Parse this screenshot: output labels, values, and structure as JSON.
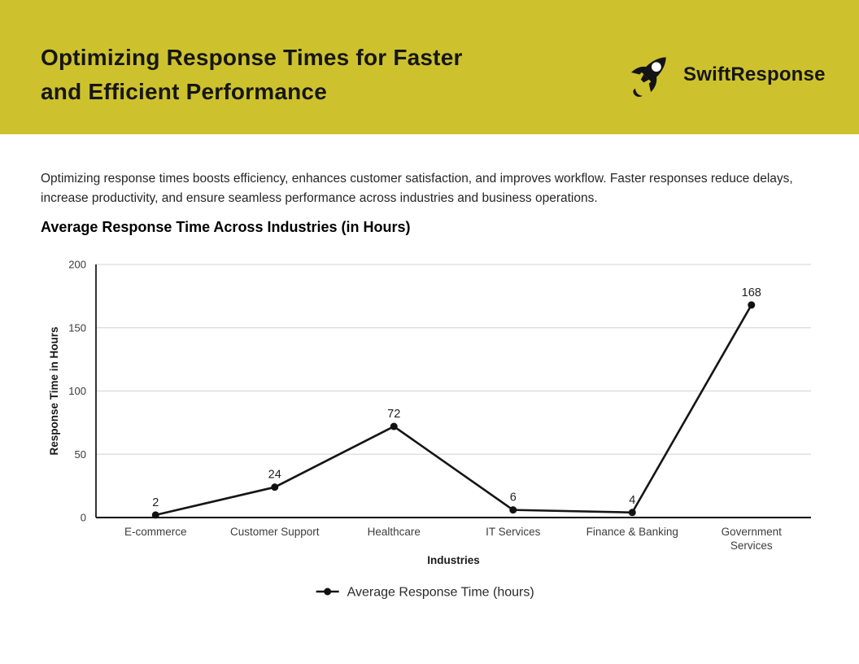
{
  "header": {
    "background": "#cdc22d",
    "title_lines": [
      "Optimizing Response Times for Faster",
      "and Efficient Performance"
    ],
    "brand_name": "SwiftResponse",
    "logo_icon": "rocket-icon"
  },
  "intro": {
    "text": "Optimizing response times boosts efficiency, enhances customer satisfaction, and improves workflow. Faster responses reduce delays, increase productivity, and ensure seamless performance across industries and business operations."
  },
  "section": {
    "title": "Average Response Time Across Industries (in Hours)"
  },
  "chart_data": {
    "type": "line",
    "title": "Average Response Time Across Industries (in Hours)",
    "categories": [
      "E-commerce",
      "Customer Support",
      "Healthcare",
      "IT Services",
      "Finance & Banking",
      "Government Services"
    ],
    "series": [
      {
        "name": "Average Response Time (hours)",
        "values": [
          2,
          24,
          72,
          6,
          4,
          168
        ]
      }
    ],
    "xlabel": "Industries",
    "ylabel": "Response Time in Hours",
    "ylim": [
      0,
      200
    ],
    "yticks": [
      0,
      50,
      100,
      150,
      200
    ],
    "grid": true,
    "legend_position": "bottom",
    "line_color": "#151515",
    "marker": "circle",
    "gridline_color": "#dadada",
    "axis_color": "#000000",
    "tick_label_color": "#3a3a3a",
    "category_label_color": "#3d3d3d",
    "data_label_color": "#1f1f1f"
  }
}
